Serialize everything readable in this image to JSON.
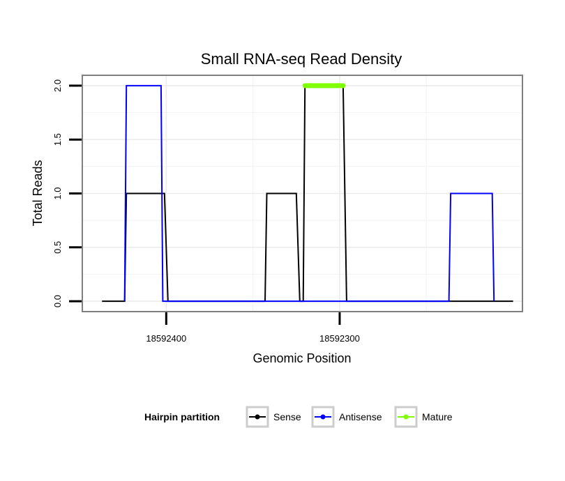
{
  "chart_data": {
    "type": "line",
    "title": "Small RNA-seq Read Density",
    "xlabel": "Genomic Position",
    "ylabel": "Total Reads",
    "x_reversed": true,
    "xlim": [
      18592448,
      18592195
    ],
    "ylim": [
      -0.09,
      2.09
    ],
    "x_ticks": [
      18592400,
      18592300
    ],
    "x_tick_labels": [
      "18592400",
      "18592300"
    ],
    "y_ticks": [
      0,
      0.5,
      1,
      1.5,
      2
    ],
    "y_tick_labels": [
      "0.0",
      "0.5",
      "1.0",
      "1.5",
      "2.0"
    ],
    "grid": true,
    "legend": {
      "title": "Hairpin partition",
      "position": "bottom",
      "entries": [
        "Sense",
        "Antisense",
        "Mature"
      ]
    },
    "series": [
      {
        "name": "Sense",
        "color": "#000000",
        "x": [
          18592437,
          18592424,
          18592423,
          18592401,
          18592399,
          18592343,
          18592342,
          18592325,
          18592323,
          18592321,
          18592320,
          18592298,
          18592296,
          18592200
        ],
        "y": [
          0,
          0,
          1,
          1,
          0,
          0,
          1,
          1,
          0,
          0,
          2,
          2,
          0,
          0
        ]
      },
      {
        "name": "Antisense",
        "color": "#0000ff",
        "x": [
          18592424,
          18592423,
          18592403,
          18592402,
          18592237,
          18592236,
          18592212,
          18592211
        ],
        "y": [
          0,
          2,
          2,
          0,
          0,
          1,
          1,
          0
        ]
      },
      {
        "name": "Mature",
        "color": "#7fff00",
        "x": [
          18592320,
          18592298
        ],
        "y": [
          2,
          2
        ]
      }
    ]
  }
}
